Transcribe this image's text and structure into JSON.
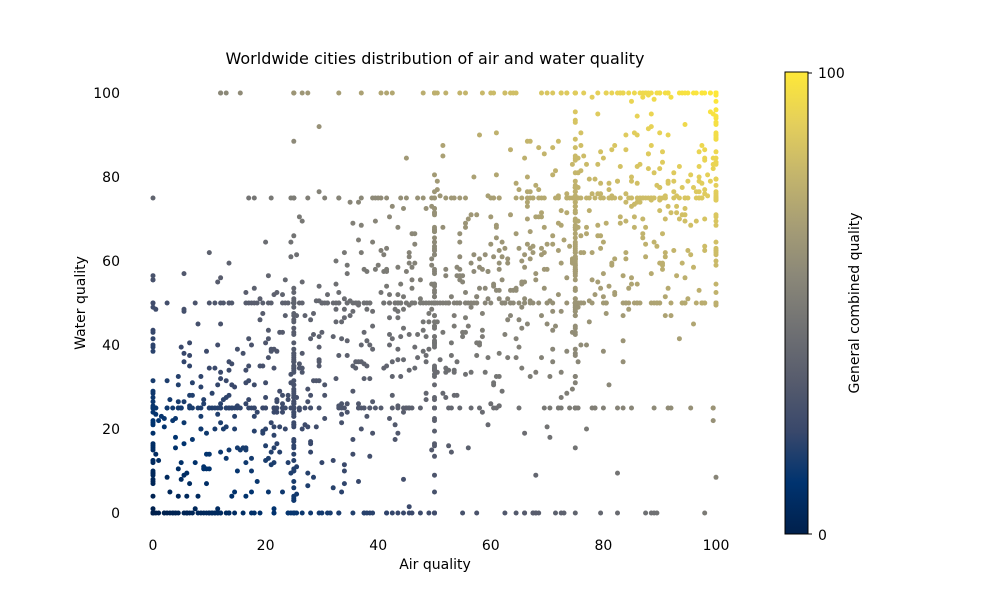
{
  "chart_data": {
    "type": "scatter",
    "title": "Worldwide cities distribution of air and water quality",
    "xlabel": "Air quality",
    "ylabel": "Water quality",
    "xlim": [
      -3,
      103
    ],
    "ylim": [
      -5,
      105
    ],
    "xticks": [
      0,
      20,
      40,
      60,
      80,
      100
    ],
    "yticks": [
      0,
      20,
      40,
      60,
      80,
      100
    ],
    "grid": false,
    "colorbar": {
      "label": "General combined quality",
      "min": 0,
      "max": 100,
      "tick_labels": [
        "0",
        "100"
      ],
      "colormap": "cividis",
      "color_stops": [
        "#00204c",
        "#00336f",
        "#39486b",
        "#575c6d",
        "#707173",
        "#8a8778",
        "#a69d75",
        "#c4b56c",
        "#e4cf5b",
        "#fee838"
      ]
    },
    "series": [
      {
        "description": "about 1800 cities, point color = combined air and water quality",
        "count": 1800,
        "notable_values": {
          "air_quality_clusters": [
            0,
            25,
            50,
            75,
            100
          ],
          "water_quality_clusters": [
            0,
            25,
            50,
            75,
            100
          ]
        }
      }
    ]
  }
}
